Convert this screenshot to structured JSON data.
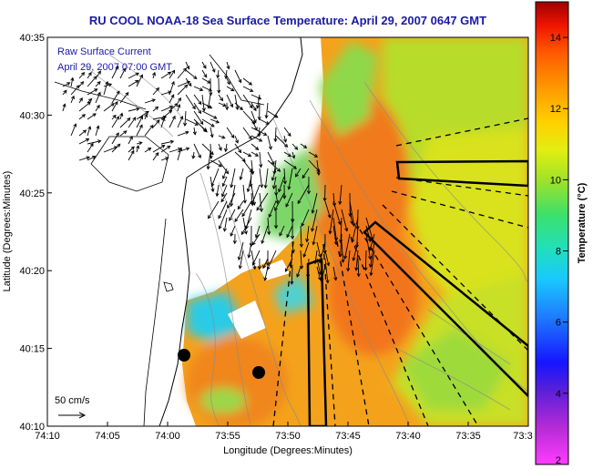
{
  "title": "RU COOL  NOAA-18  Sea Surface Temperature:  April 29, 2007 0647 GMT",
  "overlay": {
    "line1": "Raw Surface Current",
    "line2": "April 29, 2007 07:00 GMT"
  },
  "scale_label": "50 cm/s",
  "chart_data": {
    "type": "heatmap",
    "xlabel": "Longitude (Degrees:Minutes)",
    "ylabel": "Latitude (Degrees:Minutes)",
    "x_ticks": [
      "74:10",
      "74:05",
      "74:00",
      "73:55",
      "73:50",
      "73:45",
      "73:40",
      "73:35",
      "73:3"
    ],
    "y_ticks": [
      "40:10",
      "40:15",
      "40:20",
      "40:25",
      "40:30",
      "40:35"
    ],
    "xlim": [
      -74.1667,
      -73.5
    ],
    "ylim": [
      40.1667,
      40.5833
    ],
    "colorbar": {
      "label": "Temperature (°C)",
      "ticks": [
        "2",
        "4",
        "6",
        "8",
        "10",
        "12",
        "14"
      ],
      "range": [
        2,
        15
      ]
    }
  },
  "colors": {
    "title": "#1a1aa6",
    "warm": "#f08a1e",
    "mid": "#f5c518",
    "cool": "#8fd84a",
    "cold": "#30c8e6"
  }
}
